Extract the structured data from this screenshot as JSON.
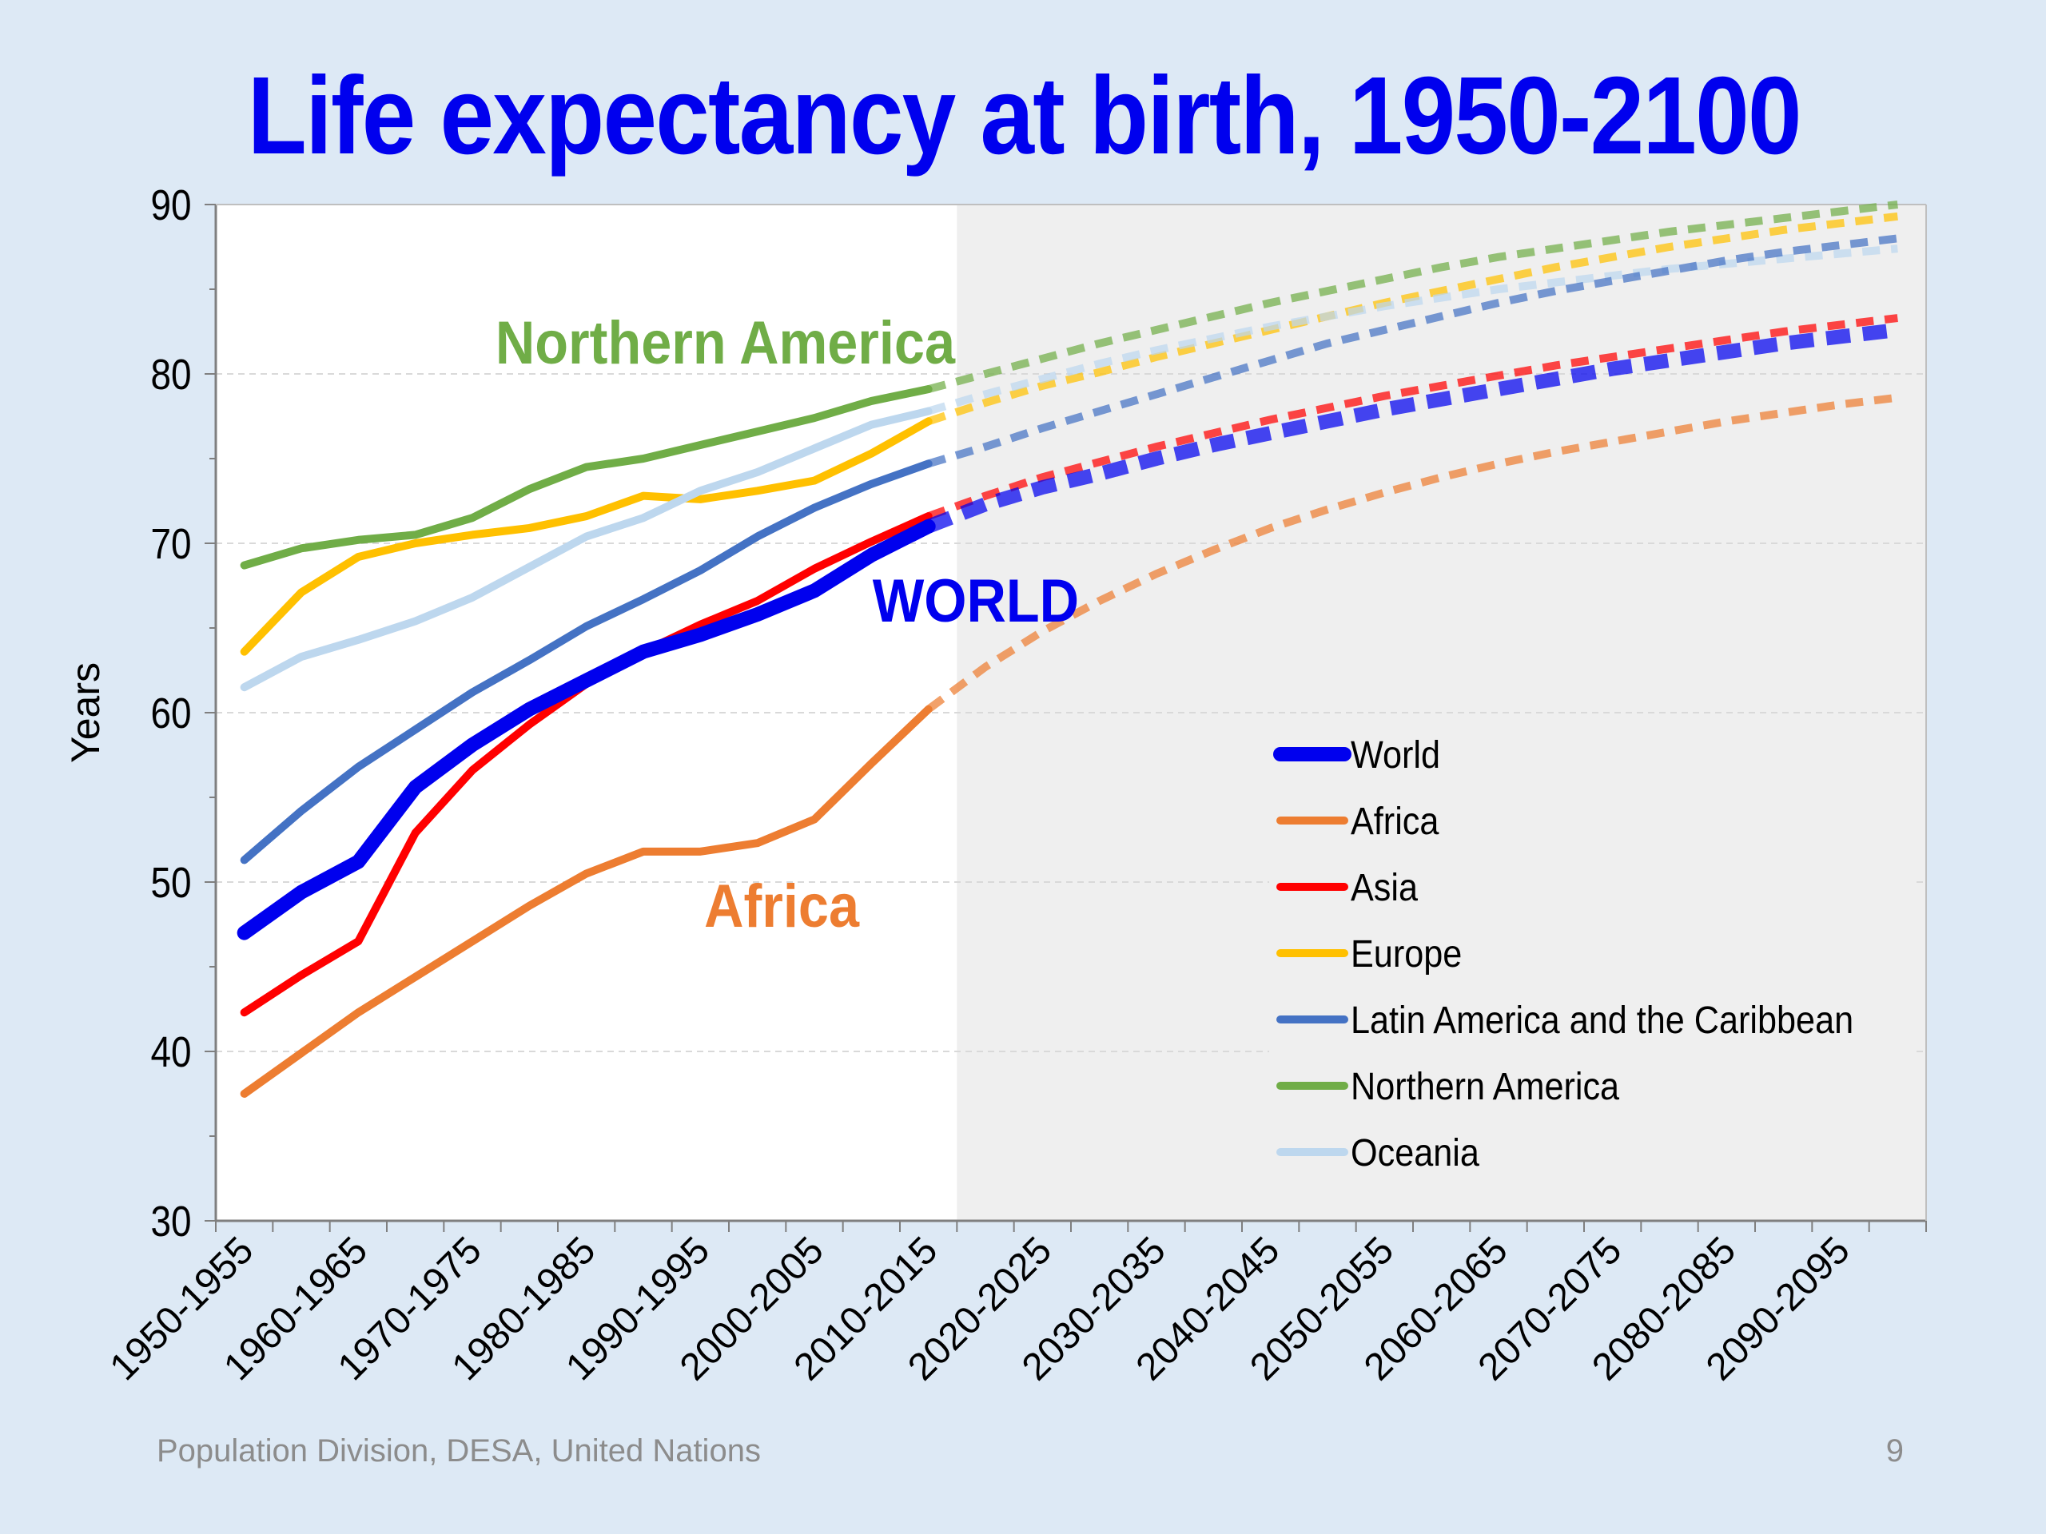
{
  "slide": {
    "title": "Life expectancy at birth, 1950-2100",
    "footer": "Population Division, DESA, United Nations",
    "page_number": "9"
  },
  "colors": {
    "background": "#dde9f5",
    "title": "#0000ee",
    "projection_shade": "#efefef",
    "World": "#0000ee",
    "Africa": "#ed7d31",
    "Asia": "#ff0000",
    "Europe": "#ffc000",
    "Latin America and the Caribbean": "#4472c4",
    "Northern America": "#70ad47",
    "Oceania": "#bdd7ee"
  },
  "chart_data": {
    "type": "line",
    "title": "",
    "xlabel": "",
    "ylabel": "Years",
    "ylim": [
      30,
      90
    ],
    "yticks": [
      30,
      40,
      50,
      60,
      70,
      80,
      90
    ],
    "grid": true,
    "legend_position": "bottom-right",
    "projection_shaded_from": "2015-2020",
    "x": [
      "1950-1955",
      "1955-1960",
      "1960-1965",
      "1965-1970",
      "1970-1975",
      "1975-1980",
      "1980-1985",
      "1985-1990",
      "1990-1995",
      "1995-2000",
      "2000-2005",
      "2005-2010",
      "2010-2015",
      "2015-2020",
      "2020-2025",
      "2025-2030",
      "2030-2035",
      "2035-2040",
      "2040-2045",
      "2045-2050",
      "2050-2055",
      "2055-2060",
      "2060-2065",
      "2065-2070",
      "2070-2075",
      "2075-2080",
      "2080-2085",
      "2085-2090",
      "2090-2095",
      "2095-2100"
    ],
    "xtick_labels": [
      "1950-1955",
      "1960-1965",
      "1970-1975",
      "1980-1985",
      "1990-1995",
      "2000-2005",
      "2010-2015",
      "2020-2025",
      "2030-2035",
      "2040-2045",
      "2050-2055",
      "2060-2065",
      "2070-2075",
      "2080-2085",
      "2090-2095"
    ],
    "estimates_end_index": 12,
    "series": [
      {
        "name": "World",
        "values": [
          47.0,
          49.4,
          51.2,
          55.6,
          58.1,
          60.2,
          61.9,
          63.6,
          64.6,
          65.8,
          67.2,
          69.3,
          71.0,
          72.3,
          73.3,
          74.1,
          75.0,
          75.8,
          76.5,
          77.2,
          77.9,
          78.5,
          79.1,
          79.7,
          80.3,
          80.8,
          81.3,
          81.8,
          82.2,
          82.6
        ]
      },
      {
        "name": "Africa",
        "values": [
          37.5,
          39.9,
          42.3,
          44.4,
          46.5,
          48.6,
          50.5,
          51.8,
          51.8,
          52.3,
          53.7,
          57.0,
          60.2,
          62.7,
          64.8,
          66.6,
          68.2,
          69.6,
          70.9,
          72.0,
          73.0,
          73.9,
          74.7,
          75.4,
          76.0,
          76.6,
          77.2,
          77.7,
          78.2,
          78.6
        ]
      },
      {
        "name": "Asia",
        "values": [
          42.3,
          44.5,
          46.5,
          52.9,
          56.6,
          59.3,
          61.7,
          63.6,
          65.2,
          66.6,
          68.5,
          70.1,
          71.6,
          72.8,
          73.9,
          74.8,
          75.7,
          76.5,
          77.3,
          78.0,
          78.7,
          79.3,
          79.9,
          80.5,
          81.0,
          81.5,
          82.0,
          82.5,
          82.9,
          83.3
        ]
      },
      {
        "name": "Europe",
        "values": [
          63.6,
          67.1,
          69.2,
          70.0,
          70.5,
          70.9,
          71.6,
          72.8,
          72.6,
          73.1,
          73.7,
          75.3,
          77.2,
          78.3,
          79.3,
          80.1,
          81.0,
          81.8,
          82.6,
          83.4,
          84.2,
          84.9,
          85.6,
          86.3,
          86.9,
          87.5,
          88.0,
          88.5,
          88.9,
          89.3
        ]
      },
      {
        "name": "Latin America and the Caribbean",
        "values": [
          51.3,
          54.2,
          56.8,
          59.0,
          61.2,
          63.1,
          65.1,
          66.7,
          68.4,
          70.4,
          72.1,
          73.5,
          74.7,
          75.7,
          76.8,
          77.8,
          78.8,
          79.8,
          80.8,
          81.8,
          82.6,
          83.4,
          84.2,
          84.9,
          85.5,
          86.1,
          86.7,
          87.2,
          87.6,
          88.0
        ]
      },
      {
        "name": "Northern America",
        "values": [
          68.7,
          69.7,
          70.2,
          70.5,
          71.5,
          73.2,
          74.5,
          75.0,
          75.8,
          76.6,
          77.4,
          78.4,
          79.1,
          80.0,
          80.9,
          81.8,
          82.6,
          83.4,
          84.2,
          84.9,
          85.6,
          86.3,
          86.9,
          87.4,
          87.9,
          88.4,
          88.8,
          89.2,
          89.6,
          90.0
        ]
      },
      {
        "name": "Oceania",
        "values": [
          61.5,
          63.3,
          64.3,
          65.4,
          66.8,
          68.6,
          70.4,
          71.5,
          73.1,
          74.2,
          75.6,
          77.0,
          77.8,
          78.8,
          79.7,
          80.6,
          81.4,
          82.1,
          82.8,
          83.4,
          84.0,
          84.5,
          85.0,
          85.4,
          85.8,
          86.2,
          86.5,
          86.8,
          87.1,
          87.4
        ]
      }
    ],
    "annotations": [
      {
        "text": "Northern America",
        "series": "Northern America"
      },
      {
        "text": "WORLD",
        "series": "World"
      },
      {
        "text": "Africa",
        "series": "Africa"
      }
    ]
  }
}
